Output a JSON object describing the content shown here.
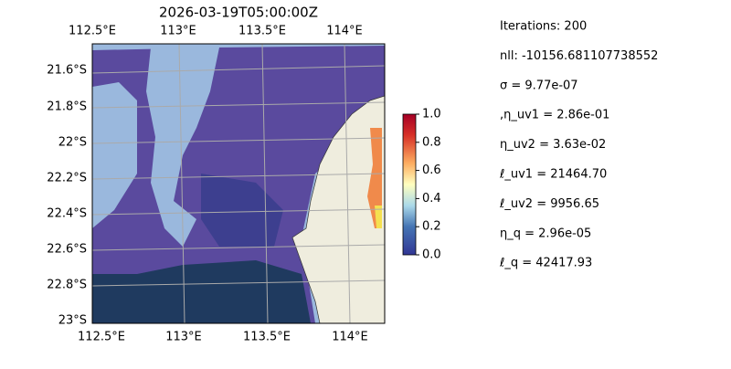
{
  "title": "2026-03-19T05:00:00Z",
  "map": {
    "lon_labels_top": [
      "112.5°E",
      "113°E",
      "113.5°E",
      "114°E"
    ],
    "lon_labels_bottom": [
      "112.5°E",
      "113°E",
      "113.5°E",
      "114°E"
    ],
    "lat_labels": [
      "21.6°S",
      "21.8°S",
      "22°S",
      "22.2°S",
      "22.4°S",
      "22.6°S",
      "22.8°S",
      "23°S"
    ]
  },
  "colorbar": {
    "lim": [
      0,
      1
    ],
    "ticks": [
      {
        "value": 0,
        "label": "0.0"
      },
      0.2,
      0.4,
      0.6,
      0.8,
      {
        "value": 1,
        "label": "1.0"
      }
    ]
  },
  "stats": [
    "Iterations: 200",
    "nll: -10156.681107738552",
    "σ = 9.77e-07",
    ",η_uv1 = 2.86e-01",
    "η_uv2 = 3.63e-02",
    "ℓ_uv1 = 21464.70",
    "ℓ_uv2 = 9956.65",
    "η_q = 2.96e-05",
    "ℓ_q = 42417.93"
  ]
}
